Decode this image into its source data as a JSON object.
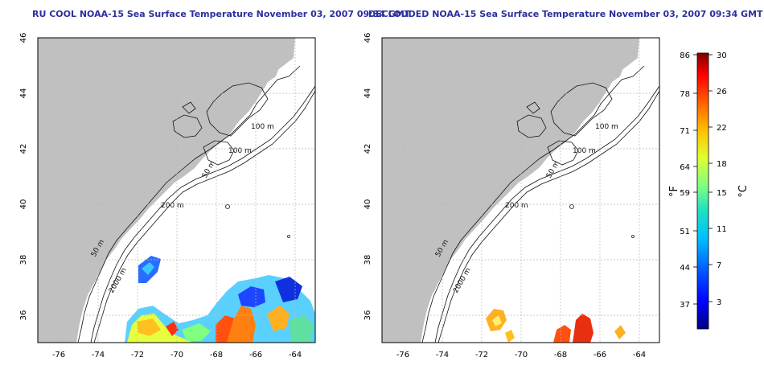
{
  "titles": {
    "left": "RU COOL NOAA-15 Sea Surface Temperature November 03, 2007 09:34 GMT",
    "right": "DECLOUDED NOAA-15 Sea Surface Temperature November 03, 2007 09:34 GMT"
  },
  "axes": {
    "lon_ticks": [
      "-76",
      "-74",
      "-72",
      "-70",
      "-68",
      "-66",
      "-64"
    ],
    "lat_ticks": [
      "46",
      "44",
      "42",
      "40",
      "38",
      "36"
    ],
    "lon_values": [
      -76,
      -74,
      -72,
      -70,
      -68,
      -66,
      -64
    ],
    "lat_values": [
      46,
      44,
      42,
      40,
      38,
      36
    ],
    "lon_range": [
      -77.1,
      -63.0
    ],
    "lat_range": [
      35.0,
      46.0
    ]
  },
  "contour_labels": [
    "100 m",
    "100 m",
    "50 m",
    "200 m",
    "50 m",
    "2000 m"
  ],
  "colorbar": {
    "fahrenheit_labels": [
      "86",
      "78",
      "71",
      "64",
      "59",
      "51",
      "44",
      "37"
    ],
    "celsius_labels": [
      "30",
      "26",
      "22",
      "18",
      "15",
      "11",
      "7",
      "3"
    ],
    "unit_f": "°F",
    "unit_c": "°C",
    "range_c": [
      0,
      30
    ],
    "colors": [
      "#000080",
      "#0000ff",
      "#0060ff",
      "#00c0ff",
      "#20e0c0",
      "#80ff80",
      "#e0ff30",
      "#ffc000",
      "#ff6000",
      "#ff0000",
      "#800000"
    ]
  },
  "colors": {
    "land": "#c0c0c0",
    "ocean": "#ffffff",
    "grid": "#b8b8b8",
    "title": "#2b2f9e"
  }
}
